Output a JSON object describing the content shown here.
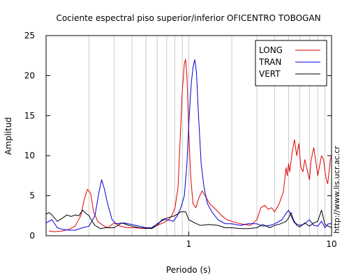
{
  "chart_data": {
    "type": "line",
    "title": "Cociente espectral piso superior/inferior OFICENTRO TOBOGAN",
    "xlabel": "Periodo (s)",
    "ylabel": "Amplitud",
    "x_scale": "log",
    "xlim": [
      0.1,
      10
    ],
    "ylim": [
      0,
      25
    ],
    "xticks": [
      1,
      10
    ],
    "xtick_labels": [
      "1",
      "10"
    ],
    "yticks": [
      0,
      5,
      10,
      15,
      20,
      25
    ],
    "ytick_labels": [
      "0",
      "5",
      "10",
      "15",
      "20",
      "25"
    ],
    "grid": "vertical minor (log decades)",
    "legend_position": "top-right",
    "side_note": "http://www.lis.ucr.ac.cr",
    "series": [
      {
        "name": "LONG",
        "color": "#e00000",
        "points": [
          [
            0.105,
            0.6
          ],
          [
            0.115,
            0.5
          ],
          [
            0.13,
            0.6
          ],
          [
            0.145,
            0.8
          ],
          [
            0.16,
            1.2
          ],
          [
            0.175,
            2.5
          ],
          [
            0.185,
            4.5
          ],
          [
            0.195,
            5.8
          ],
          [
            0.205,
            5.3
          ],
          [
            0.215,
            3.0
          ],
          [
            0.23,
            1.8
          ],
          [
            0.25,
            1.3
          ],
          [
            0.27,
            1.0
          ],
          [
            0.3,
            1.6
          ],
          [
            0.33,
            1.2
          ],
          [
            0.37,
            1.0
          ],
          [
            0.42,
            1.0
          ],
          [
            0.5,
            0.9
          ],
          [
            0.55,
            1.0
          ],
          [
            0.62,
            1.4
          ],
          [
            0.68,
            1.7
          ],
          [
            0.72,
            2.0
          ],
          [
            0.76,
            2.5
          ],
          [
            0.8,
            3.5
          ],
          [
            0.84,
            6.0
          ],
          [
            0.87,
            12.0
          ],
          [
            0.9,
            18.0
          ],
          [
            0.93,
            21.5
          ],
          [
            0.95,
            22.0
          ],
          [
            0.97,
            20.0
          ],
          [
            1.0,
            13.0
          ],
          [
            1.03,
            7.5
          ],
          [
            1.07,
            4.0
          ],
          [
            1.12,
            3.5
          ],
          [
            1.18,
            4.8
          ],
          [
            1.24,
            5.6
          ],
          [
            1.3,
            5.0
          ],
          [
            1.4,
            4.0
          ],
          [
            1.5,
            3.5
          ],
          [
            1.6,
            3.0
          ],
          [
            1.7,
            2.5
          ],
          [
            1.85,
            2.0
          ],
          [
            2.0,
            1.8
          ],
          [
            2.3,
            1.5
          ],
          [
            2.7,
            1.3
          ],
          [
            3.0,
            2.0
          ],
          [
            3.2,
            3.5
          ],
          [
            3.4,
            3.8
          ],
          [
            3.6,
            3.3
          ],
          [
            3.8,
            3.5
          ],
          [
            4.0,
            3.0
          ],
          [
            4.3,
            4.0
          ],
          [
            4.6,
            5.5
          ],
          [
            4.8,
            8.5
          ],
          [
            4.9,
            7.5
          ],
          [
            5.0,
            9.0
          ],
          [
            5.1,
            8.0
          ],
          [
            5.3,
            10.5
          ],
          [
            5.5,
            12.0
          ],
          [
            5.7,
            10.0
          ],
          [
            5.9,
            11.5
          ],
          [
            6.1,
            8.5
          ],
          [
            6.3,
            8.0
          ],
          [
            6.5,
            9.5
          ],
          [
            6.8,
            8.0
          ],
          [
            7.0,
            7.0
          ],
          [
            7.2,
            9.5
          ],
          [
            7.5,
            11.0
          ],
          [
            7.8,
            9.0
          ],
          [
            8.0,
            7.5
          ],
          [
            8.2,
            8.5
          ],
          [
            8.5,
            10.0
          ],
          [
            8.8,
            9.5
          ],
          [
            9.0,
            8.0
          ],
          [
            9.2,
            7.0
          ],
          [
            9.4,
            6.5
          ],
          [
            9.6,
            8.0
          ],
          [
            9.8,
            9.5
          ],
          [
            10.0,
            10.0
          ]
        ]
      },
      {
        "name": "TRAN",
        "color": "#0000dd",
        "points": [
          [
            0.1,
            1.6
          ],
          [
            0.11,
            2.0
          ],
          [
            0.12,
            1.0
          ],
          [
            0.13,
            0.8
          ],
          [
            0.145,
            0.7
          ],
          [
            0.16,
            0.7
          ],
          [
            0.18,
            1.0
          ],
          [
            0.2,
            1.2
          ],
          [
            0.22,
            2.5
          ],
          [
            0.235,
            5.5
          ],
          [
            0.245,
            7.0
          ],
          [
            0.255,
            6.0
          ],
          [
            0.27,
            4.0
          ],
          [
            0.29,
            2.0
          ],
          [
            0.31,
            1.5
          ],
          [
            0.35,
            1.6
          ],
          [
            0.4,
            1.4
          ],
          [
            0.45,
            1.2
          ],
          [
            0.5,
            1.0
          ],
          [
            0.55,
            1.0
          ],
          [
            0.6,
            1.5
          ],
          [
            0.67,
            2.0
          ],
          [
            0.72,
            2.0
          ],
          [
            0.78,
            1.8
          ],
          [
            0.83,
            2.5
          ],
          [
            0.88,
            3.5
          ],
          [
            0.93,
            5.0
          ],
          [
            0.97,
            9.0
          ],
          [
            1.0,
            14.0
          ],
          [
            1.04,
            19.0
          ],
          [
            1.07,
            21.0
          ],
          [
            1.1,
            22.0
          ],
          [
            1.13,
            20.5
          ],
          [
            1.17,
            15.0
          ],
          [
            1.22,
            9.0
          ],
          [
            1.28,
            6.0
          ],
          [
            1.35,
            4.0
          ],
          [
            1.45,
            3.0
          ],
          [
            1.6,
            2.0
          ],
          [
            1.8,
            1.5
          ],
          [
            2.0,
            1.5
          ],
          [
            2.3,
            1.3
          ],
          [
            2.6,
            1.5
          ],
          [
            3.0,
            1.5
          ],
          [
            3.3,
            1.2
          ],
          [
            3.7,
            1.3
          ],
          [
            4.0,
            1.5
          ],
          [
            4.5,
            2.0
          ],
          [
            4.8,
            2.8
          ],
          [
            5.0,
            3.2
          ],
          [
            5.2,
            2.5
          ],
          [
            5.5,
            1.6
          ],
          [
            6.0,
            1.3
          ],
          [
            6.5,
            1.5
          ],
          [
            7.0,
            2.0
          ],
          [
            7.5,
            1.3
          ],
          [
            8.0,
            1.2
          ],
          [
            8.5,
            1.8
          ],
          [
            9.0,
            1.0
          ],
          [
            9.5,
            1.5
          ],
          [
            10.0,
            1.5
          ]
        ]
      },
      {
        "name": "VERT",
        "color": "#000000",
        "points": [
          [
            0.1,
            2.7
          ],
          [
            0.105,
            2.9
          ],
          [
            0.11,
            2.6
          ],
          [
            0.12,
            1.8
          ],
          [
            0.13,
            2.2
          ],
          [
            0.14,
            2.6
          ],
          [
            0.15,
            2.4
          ],
          [
            0.16,
            2.6
          ],
          [
            0.17,
            2.5
          ],
          [
            0.18,
            3.2
          ],
          [
            0.19,
            2.8
          ],
          [
            0.2,
            2.5
          ],
          [
            0.21,
            1.8
          ],
          [
            0.22,
            1.3
          ],
          [
            0.24,
            0.9
          ],
          [
            0.26,
            1.0
          ],
          [
            0.3,
            1.0
          ],
          [
            0.34,
            1.6
          ],
          [
            0.38,
            1.3
          ],
          [
            0.45,
            1.0
          ],
          [
            0.55,
            0.9
          ],
          [
            0.6,
            1.3
          ],
          [
            0.65,
            2.0
          ],
          [
            0.7,
            2.2
          ],
          [
            0.8,
            2.5
          ],
          [
            0.88,
            3.0
          ],
          [
            0.95,
            3.0
          ],
          [
            1.0,
            2.0
          ],
          [
            1.1,
            1.6
          ],
          [
            1.2,
            1.3
          ],
          [
            1.4,
            1.4
          ],
          [
            1.6,
            1.3
          ],
          [
            1.8,
            1.0
          ],
          [
            2.0,
            1.0
          ],
          [
            2.3,
            0.9
          ],
          [
            2.6,
            0.9
          ],
          [
            3.0,
            1.0
          ],
          [
            3.3,
            1.4
          ],
          [
            3.7,
            1.0
          ],
          [
            4.0,
            1.3
          ],
          [
            4.4,
            1.5
          ],
          [
            4.8,
            1.8
          ],
          [
            5.0,
            2.2
          ],
          [
            5.2,
            2.9
          ],
          [
            5.4,
            2.0
          ],
          [
            5.7,
            1.3
          ],
          [
            6.0,
            1.1
          ],
          [
            6.5,
            1.6
          ],
          [
            7.0,
            1.2
          ],
          [
            7.5,
            1.6
          ],
          [
            8.0,
            1.8
          ],
          [
            8.5,
            3.2
          ],
          [
            9.0,
            1.4
          ],
          [
            9.5,
            1.2
          ],
          [
            10.0,
            1.0
          ]
        ]
      }
    ]
  }
}
